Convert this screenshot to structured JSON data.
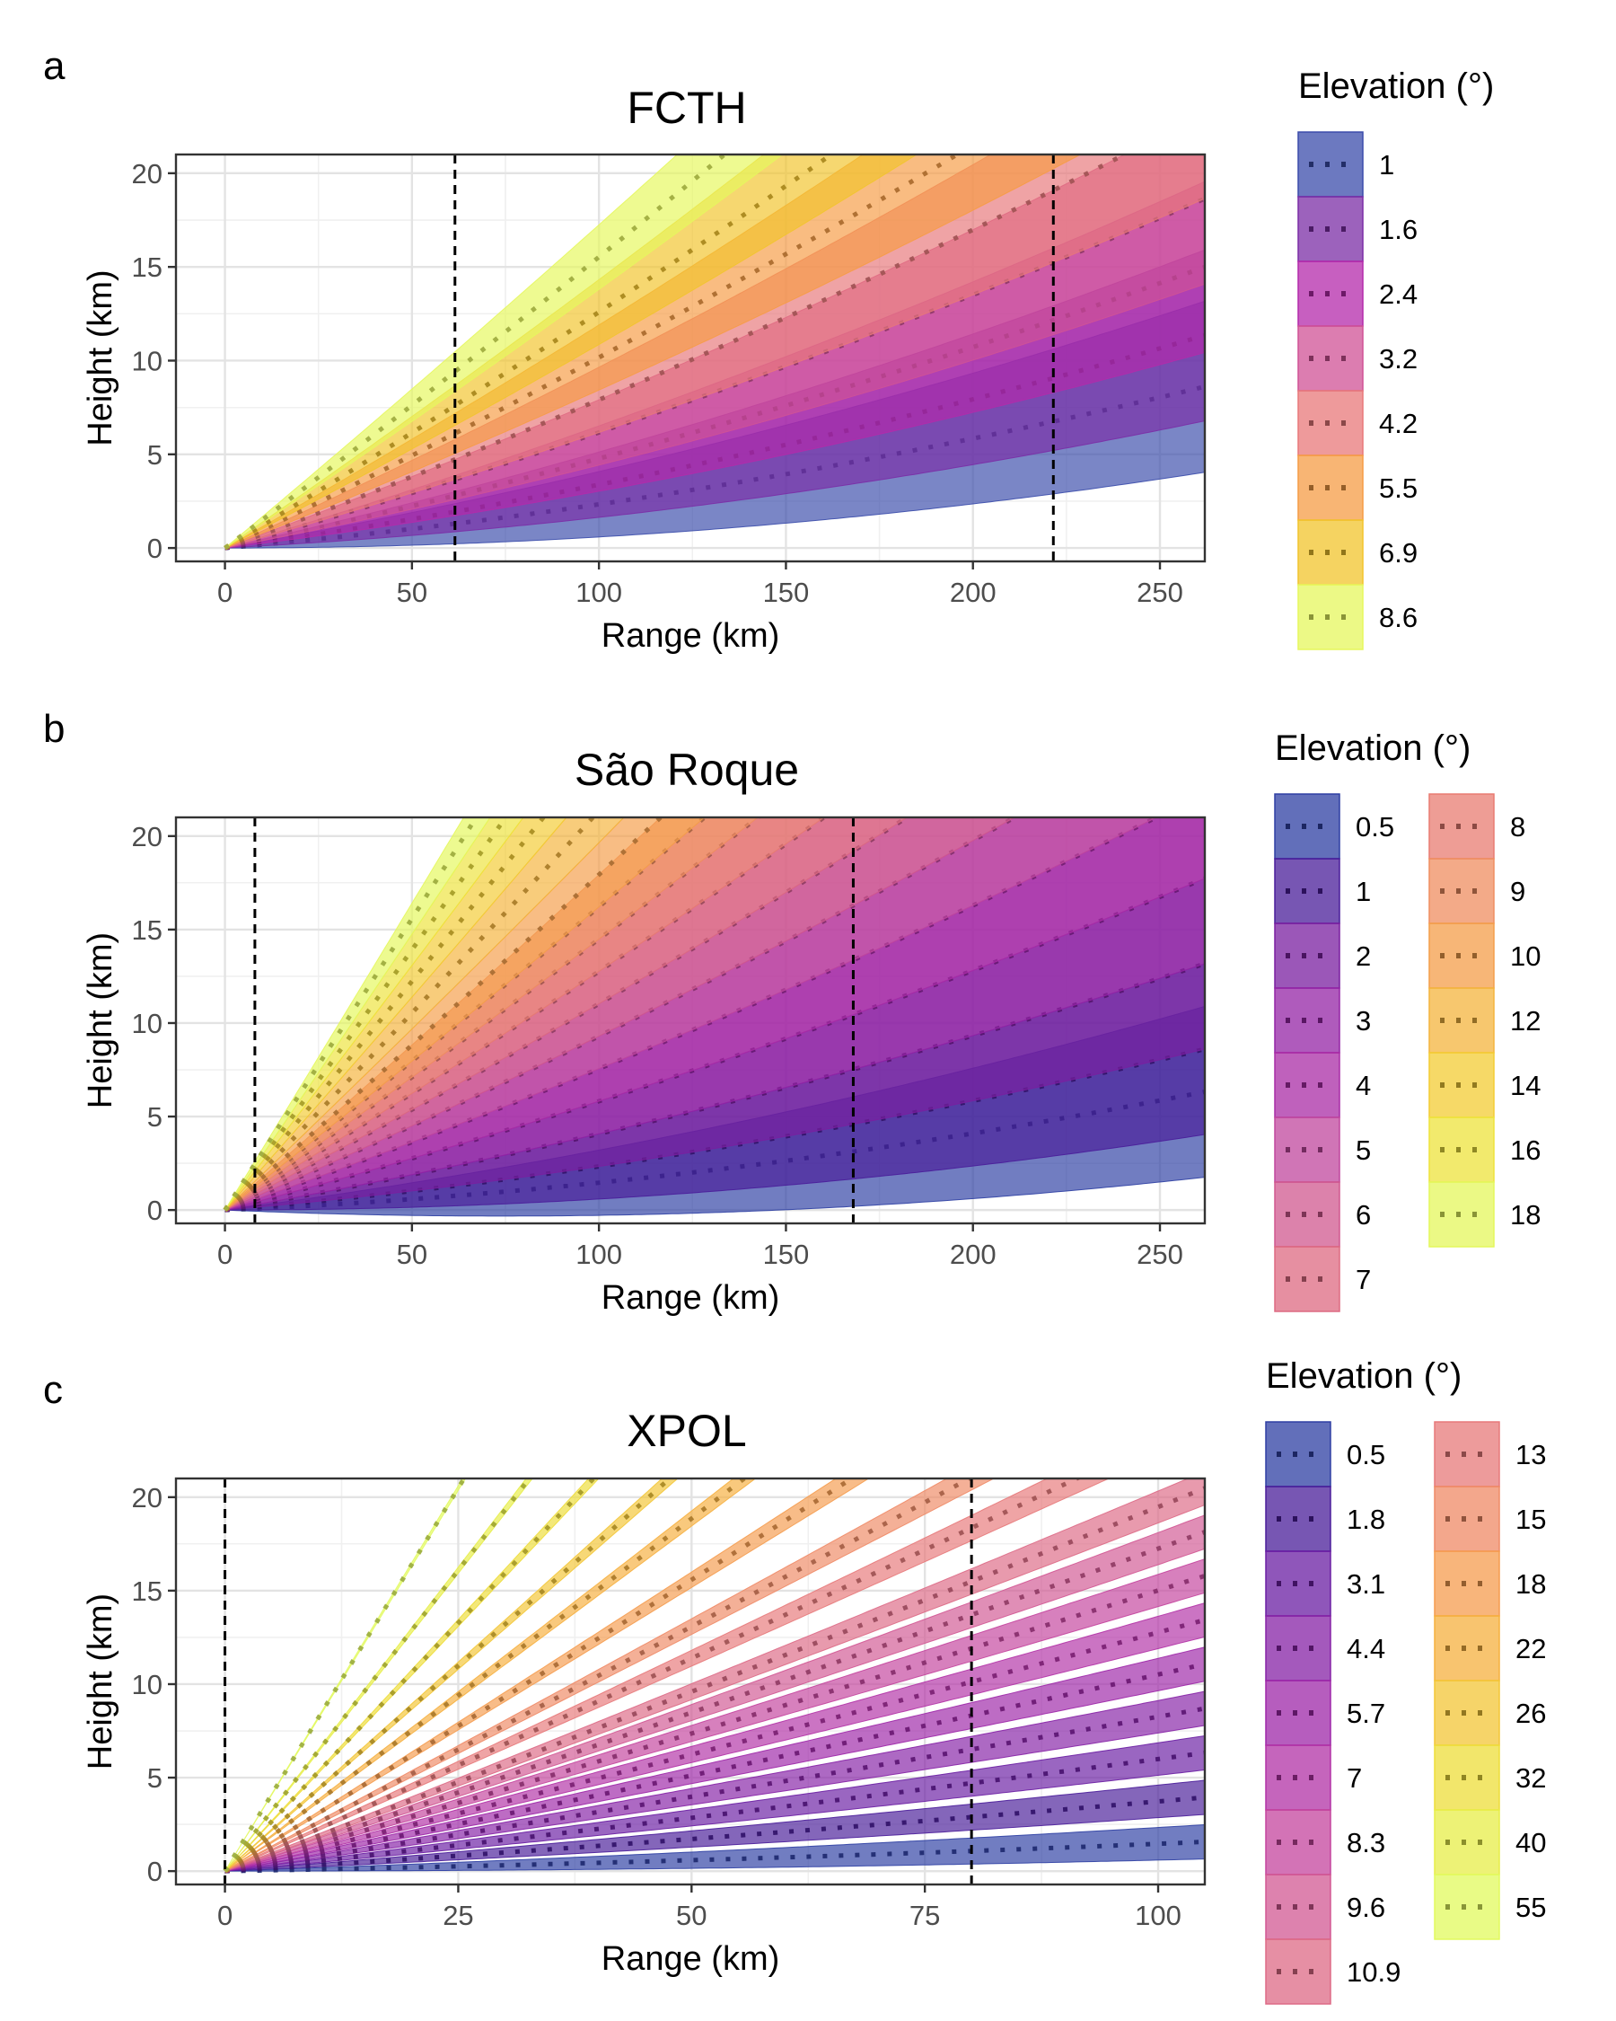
{
  "chart_data": [
    {
      "panel": "a",
      "type": "area",
      "title": "FCTH",
      "xlabel": "Range (km)",
      "ylabel": "Height (km)",
      "xlim": [
        0,
        262
      ],
      "ylim": [
        0,
        21
      ],
      "x_ticks": [
        0,
        50,
        100,
        150,
        200,
        250
      ],
      "y_ticks": [
        0,
        5,
        10,
        15,
        20
      ],
      "grid": true,
      "beam_width_deg": 2.0,
      "vlines": [
        61.5,
        221.5
      ],
      "legend": {
        "title": "Elevation (°)",
        "placement": "right",
        "columns": 1
      },
      "series": [
        {
          "name": "1",
          "elevation": 1.0,
          "color": "#3b4cab"
        },
        {
          "name": "1.6",
          "elevation": 1.6,
          "color": "#7b2da6"
        },
        {
          "name": "2.4",
          "elevation": 2.4,
          "color": "#b42aab"
        },
        {
          "name": "3.2",
          "elevation": 3.2,
          "color": "#d05296"
        },
        {
          "name": "4.2",
          "elevation": 4.2,
          "color": "#e8787a"
        },
        {
          "name": "5.5",
          "elevation": 5.5,
          "color": "#f69c45"
        },
        {
          "name": "6.9",
          "elevation": 6.9,
          "color": "#f2c42c"
        },
        {
          "name": "8.6",
          "elevation": 8.6,
          "color": "#e6f75d"
        }
      ]
    },
    {
      "panel": "b",
      "type": "area",
      "title": "São Roque",
      "xlabel": "Range (km)",
      "ylabel": "Height (km)",
      "xlim": [
        0,
        262
      ],
      "ylim": [
        0,
        21
      ],
      "x_ticks": [
        0,
        50,
        100,
        150,
        200,
        250
      ],
      "y_ticks": [
        0,
        5,
        10,
        15,
        20
      ],
      "grid": true,
      "beam_width_deg": 2.0,
      "vlines": [
        8,
        168
      ],
      "legend": {
        "title": "Elevation (°)",
        "placement": "right",
        "columns": 2
      },
      "series": [
        {
          "name": "0.5",
          "elevation": 0.5,
          "color": "#2e3fa3"
        },
        {
          "name": "1",
          "elevation": 1,
          "color": "#4a1d9a"
        },
        {
          "name": "2",
          "elevation": 2,
          "color": "#7a1fa0"
        },
        {
          "name": "3",
          "elevation": 3,
          "color": "#9424a5"
        },
        {
          "name": "4",
          "elevation": 4,
          "color": "#a92ca6"
        },
        {
          "name": "5",
          "elevation": 5,
          "color": "#c0479e"
        },
        {
          "name": "6",
          "elevation": 6,
          "color": "#d0588f"
        },
        {
          "name": "7",
          "elevation": 7,
          "color": "#dd6a82"
        },
        {
          "name": "8",
          "elevation": 8,
          "color": "#e87c72"
        },
        {
          "name": "9",
          "elevation": 9,
          "color": "#ef8e60"
        },
        {
          "name": "10",
          "elevation": 10,
          "color": "#f49e4a"
        },
        {
          "name": "12",
          "elevation": 12,
          "color": "#f4b43d"
        },
        {
          "name": "14",
          "elevation": 14,
          "color": "#f3cc34"
        },
        {
          "name": "16",
          "elevation": 16,
          "color": "#eee33c"
        },
        {
          "name": "18",
          "elevation": 18,
          "color": "#e4f75c"
        }
      ]
    },
    {
      "panel": "c",
      "type": "area",
      "title": "XPOL",
      "xlabel": "Range (km)",
      "ylabel": "Height (km)",
      "xlim": [
        0,
        105
      ],
      "ylim": [
        0,
        21
      ],
      "x_ticks": [
        0,
        25,
        50,
        75,
        100
      ],
      "y_ticks": [
        0,
        5,
        10,
        15,
        20
      ],
      "grid": true,
      "beam_width_deg": 1.0,
      "vlines": [
        0,
        80
      ],
      "legend": {
        "title": "Elevation (°)",
        "placement": "right",
        "columns": 2
      },
      "series": [
        {
          "name": "0.5",
          "elevation": 0.5,
          "color": "#2e3fa3"
        },
        {
          "name": "1.8",
          "elevation": 1.8,
          "color": "#4a1d9a"
        },
        {
          "name": "3.1",
          "elevation": 3.1,
          "color": "#6a1ea3"
        },
        {
          "name": "4.4",
          "elevation": 4.4,
          "color": "#8622a6"
        },
        {
          "name": "5.7",
          "elevation": 5.7,
          "color": "#9d27a8"
        },
        {
          "name": "7",
          "elevation": 7,
          "color": "#b232a6"
        },
        {
          "name": "8.3",
          "elevation": 8.3,
          "color": "#c4449d"
        },
        {
          "name": "9.6",
          "elevation": 9.6,
          "color": "#d25893"
        },
        {
          "name": "10.9",
          "elevation": 10.9,
          "color": "#dd6a86"
        },
        {
          "name": "13",
          "elevation": 13,
          "color": "#e7797a"
        },
        {
          "name": "15",
          "elevation": 15,
          "color": "#ef8a66"
        },
        {
          "name": "18",
          "elevation": 18,
          "color": "#f59c4f"
        },
        {
          "name": "22",
          "elevation": 22,
          "color": "#f6b03f"
        },
        {
          "name": "26",
          "elevation": 26,
          "color": "#f3c637"
        },
        {
          "name": "32",
          "elevation": 32,
          "color": "#eedd3a"
        },
        {
          "name": "40",
          "elevation": 40,
          "color": "#e7ee48"
        },
        {
          "name": "55",
          "elevation": 55,
          "color": "#e2fa5e"
        }
      ]
    }
  ]
}
